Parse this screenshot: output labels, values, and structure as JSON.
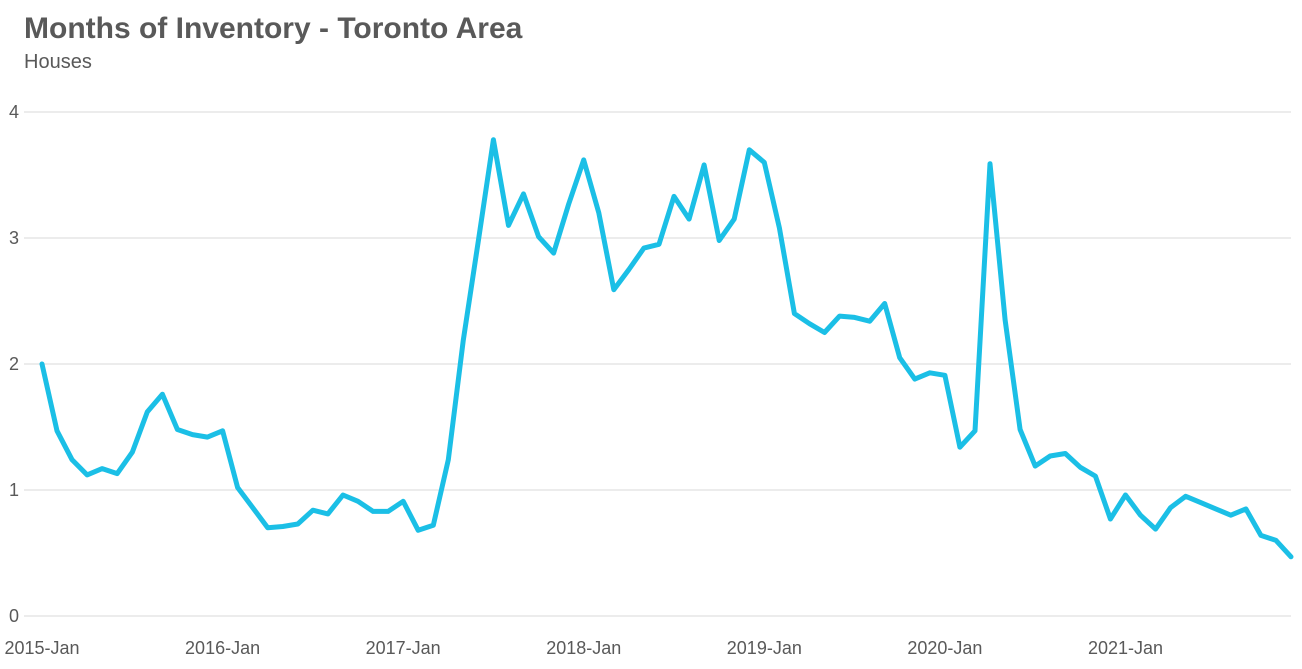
{
  "chart_data": {
    "type": "line",
    "title": "Months of Inventory - Toronto Area",
    "subtitle": "Houses",
    "xlabel": "",
    "ylabel": "",
    "ylim": [
      0,
      4
    ],
    "y_ticks": [
      "0",
      "1",
      "2",
      "3",
      "4"
    ],
    "x_tick_labels": [
      "2015-Jan",
      "2016-Jan",
      "2017-Jan",
      "2018-Jan",
      "2019-Jan",
      "2020-Jan",
      "2021-Jan"
    ],
    "grid": "horizontal",
    "legend": "none",
    "line_color": "#1bbfe6",
    "x": [
      "2015-Jan",
      "2015-Feb",
      "2015-Mar",
      "2015-Apr",
      "2015-May",
      "2015-Jun",
      "2015-Jul",
      "2015-Aug",
      "2015-Sep",
      "2015-Oct",
      "2015-Nov",
      "2015-Dec",
      "2016-Jan",
      "2016-Feb",
      "2016-Mar",
      "2016-Apr",
      "2016-May",
      "2016-Jun",
      "2016-Jul",
      "2016-Aug",
      "2016-Sep",
      "2016-Oct",
      "2016-Nov",
      "2016-Dec",
      "2017-Jan",
      "2017-Feb",
      "2017-Mar",
      "2017-Apr",
      "2017-May",
      "2017-Jun",
      "2017-Jul",
      "2017-Aug",
      "2017-Sep",
      "2017-Oct",
      "2017-Nov",
      "2017-Dec",
      "2018-Jan",
      "2018-Feb",
      "2018-Mar",
      "2018-Apr",
      "2018-May",
      "2018-Jun",
      "2018-Jul",
      "2018-Aug",
      "2018-Sep",
      "2018-Oct",
      "2018-Nov",
      "2018-Dec",
      "2019-Jan",
      "2019-Feb",
      "2019-Mar",
      "2019-Apr",
      "2019-May",
      "2019-Jun",
      "2019-Jul",
      "2019-Aug",
      "2019-Sep",
      "2019-Oct",
      "2019-Nov",
      "2019-Dec",
      "2020-Jan",
      "2020-Feb",
      "2020-Mar",
      "2020-Apr",
      "2020-May",
      "2020-Jun",
      "2020-Jul",
      "2020-Aug",
      "2020-Sep",
      "2020-Oct",
      "2020-Nov",
      "2020-Dec",
      "2021-Jan",
      "2021-Feb",
      "2021-Mar",
      "2021-Apr",
      "2021-May",
      "2021-Jun",
      "2021-Jul",
      "2021-Aug",
      "2021-Sep",
      "2021-Oct",
      "2021-Nov",
      "2021-Dec"
    ],
    "series": [
      {
        "values": [
          2.0,
          1.47,
          1.24,
          1.12,
          1.17,
          1.13,
          1.3,
          1.62,
          1.76,
          1.48,
          1.44,
          1.42,
          1.47,
          1.02,
          0.86,
          0.7,
          0.71,
          0.73,
          0.84,
          0.81,
          0.96,
          0.91,
          0.83,
          0.83,
          0.91,
          0.68,
          0.72,
          1.24,
          2.19,
          2.98,
          3.78,
          3.1,
          3.35,
          3.01,
          2.88,
          3.27,
          3.62,
          3.2,
          2.59,
          2.75,
          2.92,
          2.95,
          3.33,
          3.15,
          3.58,
          2.98,
          3.15,
          3.7,
          3.6,
          3.08,
          2.4,
          2.32,
          2.25,
          2.38,
          2.37,
          2.34,
          2.48,
          2.05,
          1.88,
          1.93,
          1.91,
          1.34,
          1.47,
          3.59,
          2.35,
          1.48,
          1.19,
          1.27,
          1.29,
          1.18,
          1.11,
          0.77,
          0.96,
          0.8,
          0.69,
          0.86,
          0.95,
          0.9,
          0.85,
          0.8,
          0.85,
          0.64,
          0.6,
          0.47
        ]
      }
    ]
  }
}
